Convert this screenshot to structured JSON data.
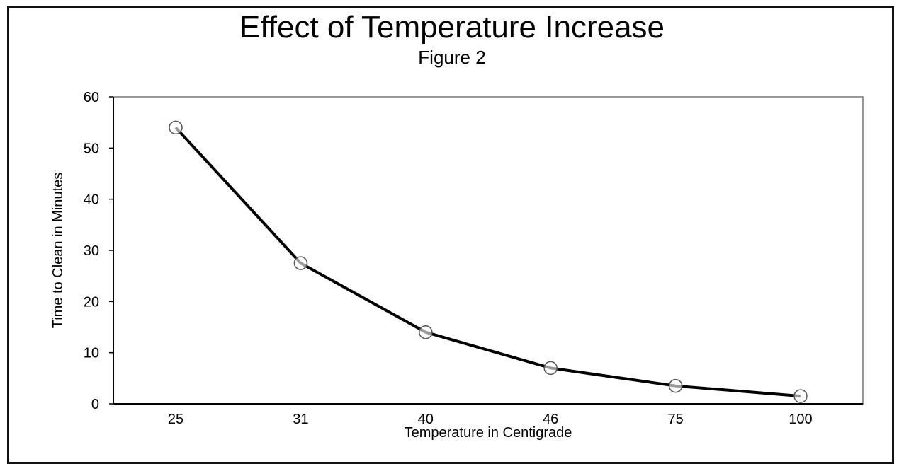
{
  "chart_data": {
    "type": "line",
    "title": "Effect of Temperature Increase",
    "subtitle": "Figure 2",
    "xlabel": "Temperature in Centigrade",
    "ylabel": "Time to Clean in Minutes",
    "categories": [
      "25",
      "31",
      "40",
      "46",
      "75",
      "100"
    ],
    "series": [
      {
        "values": [
          54,
          27.5,
          14,
          7,
          3.5,
          1.5
        ]
      }
    ],
    "ylim": [
      0,
      60
    ],
    "yticks": [
      "0",
      "10",
      "20",
      "30",
      "40",
      "50",
      "60"
    ],
    "grid": false,
    "legend": "none",
    "line_color": "#000000"
  }
}
